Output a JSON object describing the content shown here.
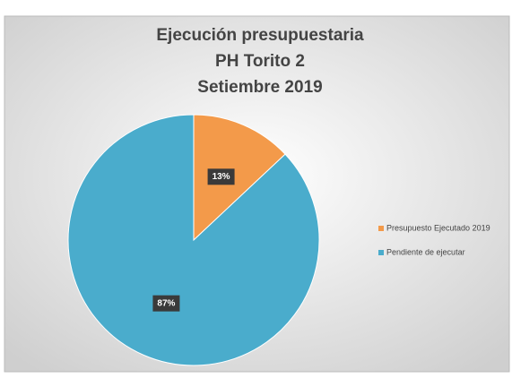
{
  "chart_data": {
    "type": "pie",
    "title": [
      "Ejecución presupuestaria",
      "PH Torito 2",
      "Setiembre 2019"
    ],
    "categories": [
      "Presupuesto Ejecutado 2019",
      "Pendiente de ejecutar"
    ],
    "values": [
      13,
      87
    ],
    "value_labels": [
      "13%",
      "87%"
    ],
    "colors": [
      "#f39a4a",
      "#4aaccc"
    ],
    "legend": "right"
  }
}
